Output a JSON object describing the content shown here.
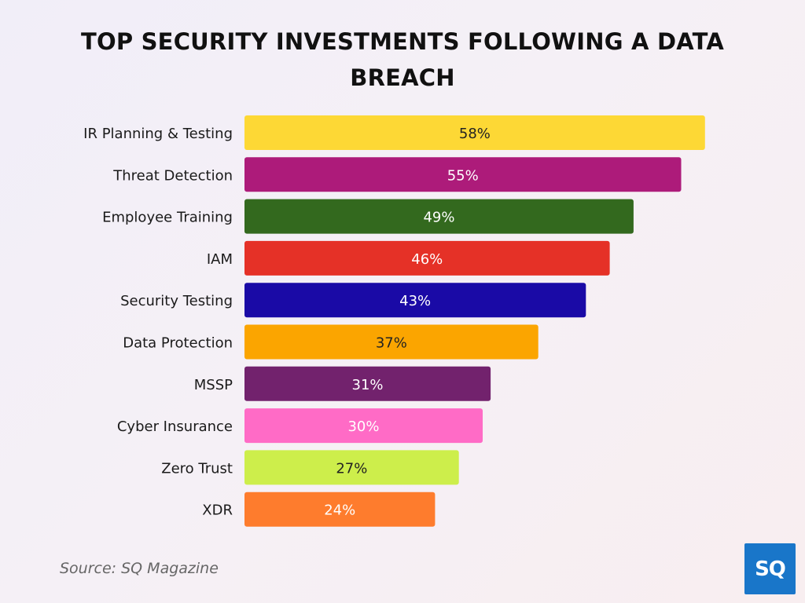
{
  "title": "TOP SECURITY INVESTMENTS FOLLOWING A DATA BREACH",
  "chart_data": {
    "type": "bar",
    "orientation": "horizontal",
    "title": "TOP SECURITY INVESTMENTS FOLLOWING A DATA BREACH",
    "xlabel": "",
    "ylabel": "",
    "unit": "%",
    "grid": false,
    "categories": [
      "IR Planning & Testing",
      "Threat Detection",
      "Employee Training",
      "IAM",
      "Security Testing",
      "Data Protection",
      "MSSP",
      "Cyber Insurance",
      "Zero Trust",
      "XDR"
    ],
    "values": [
      58,
      55,
      49,
      46,
      43,
      37,
      31,
      30,
      27,
      24
    ],
    "data_labels": [
      "58%",
      "55%",
      "49%",
      "46%",
      "43%",
      "37%",
      "31%",
      "30%",
      "27%",
      "24%"
    ],
    "colors": [
      "#fdd835",
      "#ad1b7a",
      "#33691e",
      "#e53127",
      "#1a0aa6",
      "#fba500",
      "#72226d",
      "#ff6bc6",
      "#cdee4b",
      "#fe7c2d"
    ],
    "label_colors": [
      "#222222",
      "#ffffff",
      "#ffffff",
      "#ffffff",
      "#ffffff",
      "#222222",
      "#ffffff",
      "#ffffff",
      "#222222",
      "#ffffff"
    ]
  },
  "source": "Source: SQ Magazine",
  "logo": {
    "text": "SQ",
    "color": "#1976c9"
  }
}
